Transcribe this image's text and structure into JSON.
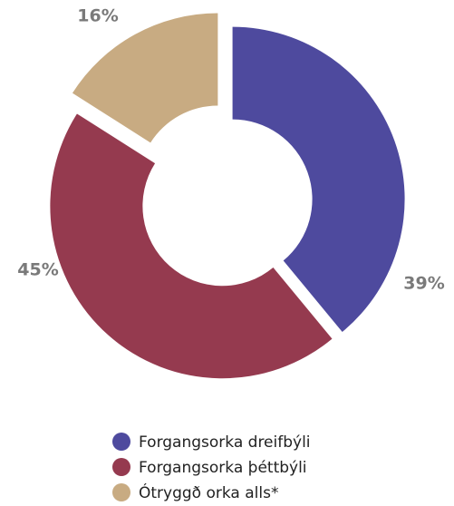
{
  "chart_data": {
    "type": "donut",
    "categories": [
      "Forgangsorka dreifbýli",
      "Forgangsorka þéttbýli",
      "Ótryggð orka alls*"
    ],
    "values": [
      39,
      45,
      16
    ],
    "value_labels": [
      "39%",
      "45%",
      "16%"
    ],
    "colors": [
      "#4e4a9e",
      "#953a4f",
      "#c8ab82"
    ]
  }
}
